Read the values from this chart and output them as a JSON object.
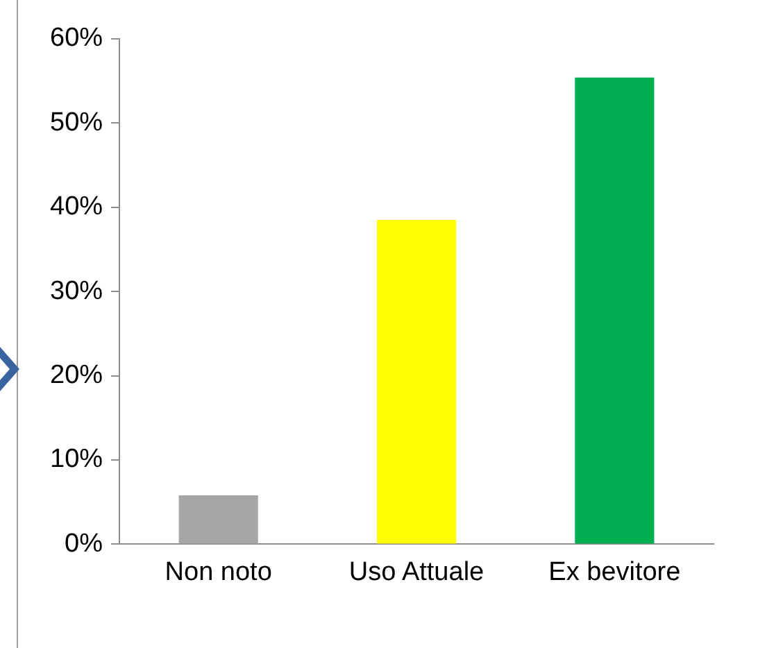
{
  "chart_data": {
    "type": "bar",
    "categories": [
      "Non noto",
      "Uso Attuale",
      "Ex bevitore"
    ],
    "values": [
      5.8,
      38.5,
      55.4
    ],
    "colors": [
      "#a6a6a6",
      "#ffff00",
      "#00b050"
    ],
    "ylim": [
      0,
      60
    ],
    "yticks": [
      {
        "value": 0,
        "label": "0%"
      },
      {
        "value": 10,
        "label": "10%"
      },
      {
        "value": 20,
        "label": "20%"
      },
      {
        "value": 30,
        "label": "30%"
      },
      {
        "value": 40,
        "label": "40%"
      },
      {
        "value": 50,
        "label": "50%"
      },
      {
        "value": 60,
        "label": "60%"
      }
    ],
    "grid": false,
    "legend": false
  }
}
